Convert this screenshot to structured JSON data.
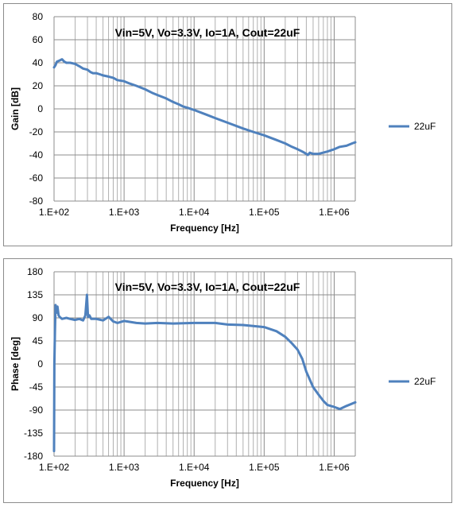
{
  "chart_data": [
    {
      "type": "line",
      "title": "Vin=5V, Vo=3.3V, Io=1A, Cout=22uF",
      "xlabel": "Frequency [Hz]",
      "ylabel": "Gain [dB]",
      "xscale": "log",
      "xlim": [
        100,
        2000000
      ],
      "ylim": [
        -80,
        80
      ],
      "xticks": [
        100,
        1000,
        10000,
        100000,
        1000000
      ],
      "xtick_labels": [
        "1.E+02",
        "1.E+03",
        "1.E+04",
        "1.E+05",
        "1.E+06"
      ],
      "yticks": [
        -80,
        -60,
        -40,
        -20,
        0,
        20,
        40,
        60,
        80
      ],
      "ytick_labels": [
        "-80",
        "-60",
        "-40",
        "-20",
        "0",
        "20",
        "40",
        "60",
        "80"
      ],
      "grid": true,
      "legend": "right",
      "series": [
        {
          "name": "22uF",
          "color": "#4f81bd",
          "x": [
            100,
            105,
            110,
            120,
            130,
            140,
            150,
            170,
            200,
            230,
            260,
            300,
            330,
            360,
            400,
            450,
            500,
            600,
            700,
            800,
            1000,
            1200,
            1500,
            2000,
            2500,
            3000,
            4000,
            5000,
            6000,
            7000,
            8000,
            10000,
            15000,
            20000,
            30000,
            50000,
            70000,
            100000,
            150000,
            200000,
            250000,
            300000,
            350000,
            400000,
            420000,
            450000,
            500000,
            600000,
            700000,
            800000,
            1000000,
            1200000,
            1500000,
            1800000,
            2000000
          ],
          "y": [
            36,
            38,
            41,
            42,
            43,
            41,
            40,
            40,
            39,
            37,
            35,
            34,
            32,
            31,
            31,
            30,
            29,
            28,
            27,
            25,
            24,
            22,
            20,
            17,
            14,
            12,
            9,
            6,
            4,
            2,
            1,
            -1,
            -5,
            -8,
            -12,
            -17,
            -20,
            -23,
            -27,
            -30,
            -33,
            -35,
            -37,
            -39,
            -40,
            -38,
            -39,
            -39,
            -38,
            -37,
            -35,
            -33,
            -32,
            -30,
            -29
          ]
        }
      ]
    },
    {
      "type": "line",
      "title": "Vin=5V, Vo=3.3V, Io=1A, Cout=22uF",
      "xlabel": "Frequency [Hz]",
      "ylabel": "Phase [deg]",
      "xscale": "log",
      "xlim": [
        100,
        2000000
      ],
      "ylim": [
        -180,
        180
      ],
      "xticks": [
        100,
        1000,
        10000,
        100000,
        1000000
      ],
      "xtick_labels": [
        "1.E+02",
        "1.E+03",
        "1.E+04",
        "1.E+05",
        "1.E+06"
      ],
      "yticks": [
        -180,
        -135,
        -90,
        -45,
        0,
        45,
        90,
        135,
        180
      ],
      "ytick_labels": [
        "-180",
        "-135",
        "-90",
        "-45",
        "0",
        "45",
        "90",
        "135",
        "180"
      ],
      "grid": true,
      "legend": "right",
      "series": [
        {
          "name": "22uF",
          "color": "#4f81bd",
          "x": [
            100,
            101,
            103,
            105,
            108,
            112,
            116,
            120,
            130,
            150,
            170,
            200,
            230,
            260,
            280,
            295,
            305,
            320,
            340,
            400,
            500,
            600,
            700,
            800,
            1000,
            1500,
            2000,
            3000,
            5000,
            10000,
            20000,
            30000,
            50000,
            70000,
            100000,
            150000,
            200000,
            250000,
            300000,
            350000,
            400000,
            500000,
            600000,
            700000,
            800000,
            1000000,
            1200000,
            1500000,
            2000000
          ],
          "y": [
            -170,
            0,
            60,
            115,
            100,
            112,
            95,
            92,
            88,
            90,
            88,
            86,
            88,
            85,
            95,
            135,
            92,
            95,
            88,
            88,
            85,
            92,
            83,
            80,
            84,
            80,
            79,
            80,
            79,
            80,
            80,
            77,
            76,
            74,
            72,
            64,
            53,
            40,
            28,
            10,
            -15,
            -45,
            -60,
            -72,
            -80,
            -84,
            -88,
            -82,
            -75
          ]
        }
      ]
    }
  ]
}
